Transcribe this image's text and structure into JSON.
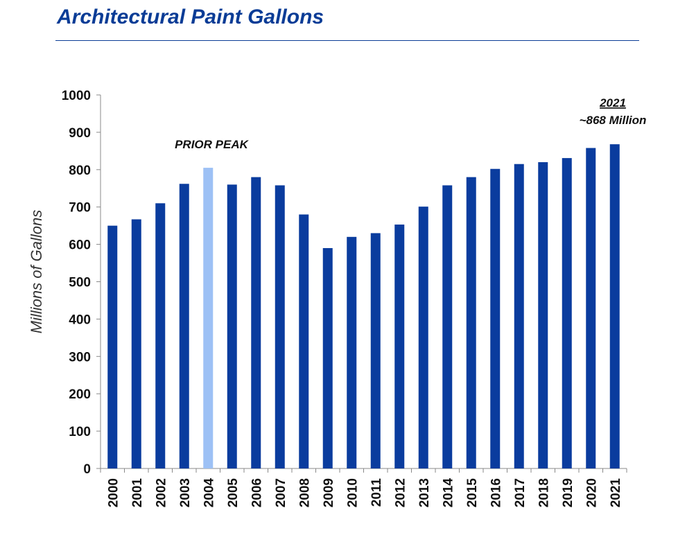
{
  "header": {
    "title": "Architectural Paint Gallons"
  },
  "chart_data": {
    "type": "bar",
    "title": "Architectural Paint Gallons",
    "xlabel": "",
    "ylabel": "Millions of Gallons",
    "ylim": [
      0,
      1000
    ],
    "yticks": [
      0,
      100,
      200,
      300,
      400,
      500,
      600,
      700,
      800,
      900,
      1000
    ],
    "categories": [
      "2000",
      "2001",
      "2002",
      "2003",
      "2004",
      "2005",
      "2006",
      "2007",
      "2008",
      "2009",
      "2010",
      "2011",
      "2012",
      "2013",
      "2014",
      "2015",
      "2016",
      "2017",
      "2018",
      "2019",
      "2020",
      "2021"
    ],
    "values": [
      650,
      667,
      710,
      762,
      805,
      760,
      780,
      758,
      680,
      590,
      620,
      630,
      653,
      701,
      758,
      780,
      802,
      815,
      820,
      831,
      858,
      868
    ],
    "highlight_category": "2004",
    "colors": {
      "bar": "#0a3c9e",
      "highlight": "#9dc1f5",
      "axis": "#888888"
    },
    "annotations": {
      "prior_peak": "PRIOR PEAK",
      "latest_year": "2021",
      "latest_value": "~868 Million"
    }
  }
}
